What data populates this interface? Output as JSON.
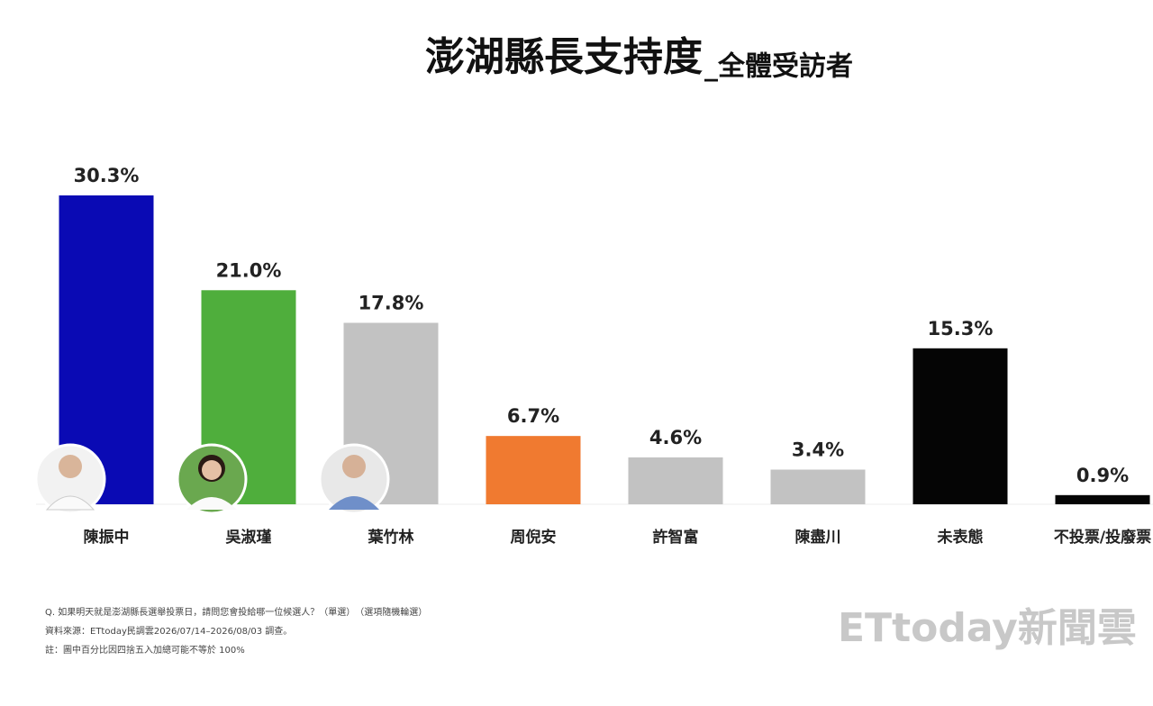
{
  "chart_data": {
    "type": "bar",
    "title": "澎湖縣長支持度",
    "subtitle": "_全體受訪者",
    "categories": [
      "陳振中",
      "吳淑瑾",
      "葉竹林",
      "周倪安",
      "許智富",
      "陳盡川",
      "未表態",
      "不投票/投廢票"
    ],
    "values": [
      30.3,
      21.0,
      17.8,
      6.7,
      4.6,
      3.4,
      15.3,
      0.9
    ],
    "value_labels": [
      "30.3%",
      "21.0%",
      "17.8%",
      "6.7%",
      "4.6%",
      "3.4%",
      "15.3%",
      "0.9%"
    ],
    "colors": [
      "#0a0ab4",
      "#4fae3c",
      "#c2c2c2",
      "#f07a30",
      "#c2c2c2",
      "#c2c2c2",
      "#050505",
      "#050505"
    ],
    "notes": [
      "Q. 如果明天就是澎湖縣長選舉投票日，請問您會投給哪一位候選人？（單選）　（選項隨機輪選）",
      "資料來源：ETtoday民調雲2026/07/14–2026/08/03 調查。",
      "註：圖中百分比因四捨五入加總可能不等於 100%"
    ],
    "logo": "ETtoday新聞雲"
  }
}
